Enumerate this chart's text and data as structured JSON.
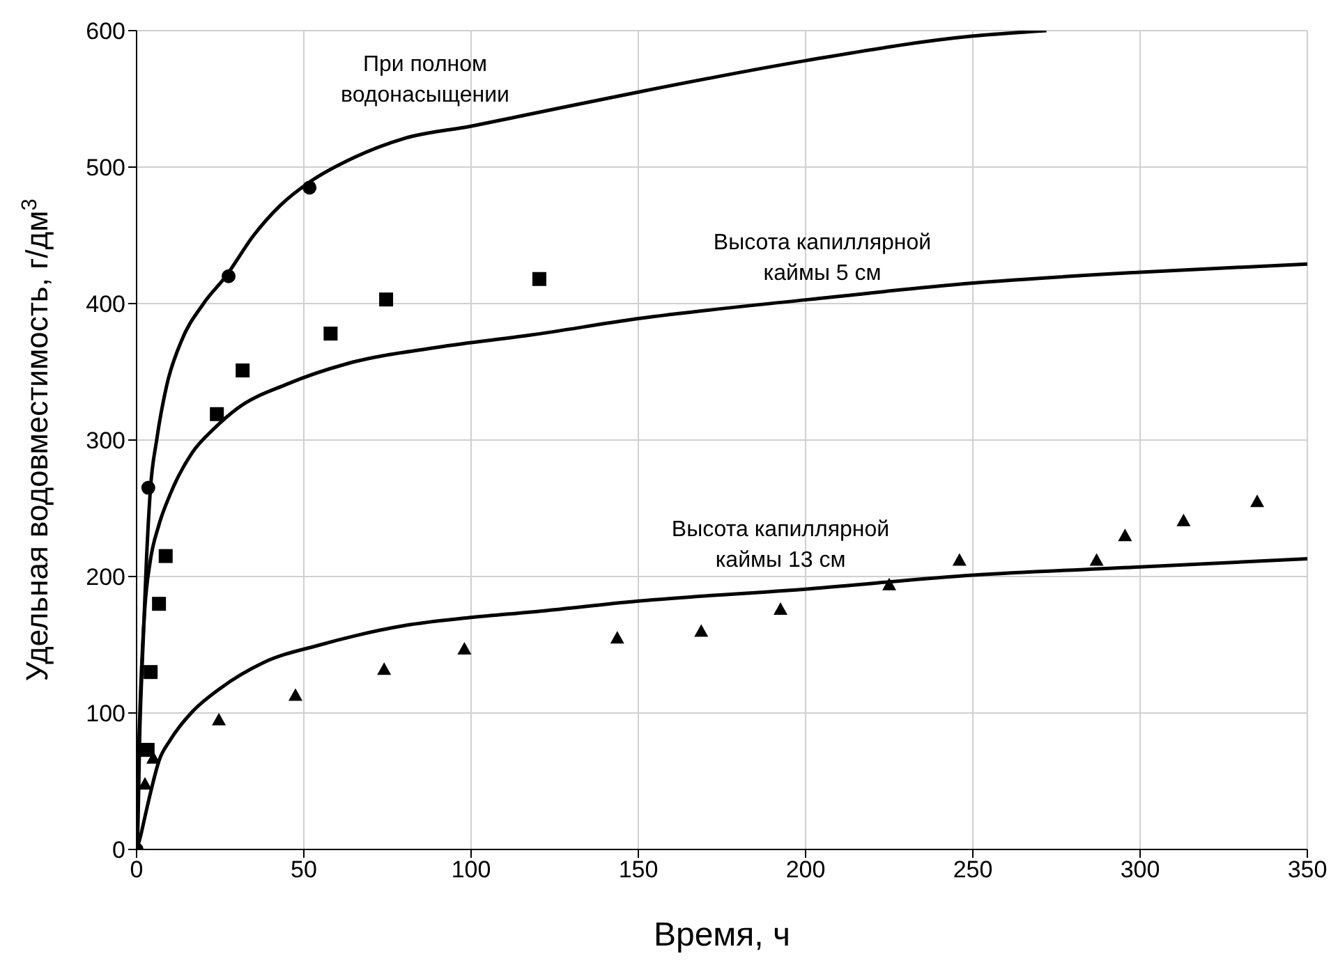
{
  "chart_data": {
    "type": "scatter",
    "xlabel": "Время, ч",
    "ylabel": "Удельная водовместимость, г/дм$^{3}$",
    "xlim": [
      0,
      350
    ],
    "ylim": [
      0,
      600
    ],
    "xticks": [
      0,
      50,
      100,
      150,
      200,
      250,
      300,
      350
    ],
    "yticks": [
      0,
      100,
      200,
      300,
      400,
      500,
      600
    ],
    "grid": true,
    "series": [
      {
        "type": "line",
        "marker": "none",
        "color": "#000000",
        "x": [
          0,
          0.3,
          1,
          1.7,
          3,
          4.2,
          6,
          9,
          13.3,
          20,
          26.7,
          35,
          43,
          51.7,
          65,
          80,
          100,
          118,
          150,
          200,
          250,
          272
        ],
        "values": [
          0,
          10,
          90,
          137,
          215,
          266,
          300,
          340,
          372,
          400,
          420,
          450,
          472,
          489,
          507,
          521,
          530,
          539,
          555,
          578,
          596,
          600
        ]
      },
      {
        "type": "line",
        "marker": "none",
        "color": "#000000",
        "x": [
          0,
          0.5,
          1.2,
          2.5,
          4,
          6.7,
          10,
          16.7,
          23,
          30,
          45,
          63,
          90,
          118,
          150,
          201,
          250,
          300,
          350
        ],
        "values": [
          0,
          60,
          115,
          178,
          210,
          238,
          260,
          291,
          308,
          323,
          341,
          356,
          368,
          377,
          389,
          403,
          415,
          423,
          429
        ]
      },
      {
        "type": "line",
        "marker": "none",
        "color": "#000000",
        "x": [
          0,
          1,
          2.5,
          4.5,
          6.7,
          10,
          16.7,
          25,
          38,
          55,
          80,
          100,
          118,
          150,
          201,
          250,
          300,
          350
        ],
        "values": [
          0,
          8,
          24,
          45,
          65,
          80,
          101,
          118,
          137,
          150,
          164,
          170,
          174,
          182,
          191,
          201,
          207,
          213
        ]
      },
      {
        "marker": "circle",
        "color": "#000000",
        "x": [
          0,
          3.5,
          27.5,
          51.7
        ],
        "values": [
          0,
          265,
          420,
          485
        ]
      },
      {
        "marker": "square",
        "color": "#000000",
        "x": [
          3.3,
          4.2,
          6.7,
          8.7,
          24,
          31.7,
          58,
          74.6,
          120.4
        ],
        "values": [
          73,
          130,
          180,
          215,
          319,
          351,
          378,
          403,
          418
        ]
      },
      {
        "marker": "triangle",
        "color": "#000000",
        "x": [
          2.5,
          5,
          24.6,
          47.5,
          74,
          98,
          143.7,
          168.8,
          192.5,
          225,
          246,
          287,
          295.5,
          313,
          335
        ],
        "values": [
          48,
          67,
          95,
          113,
          132,
          147,
          155,
          160,
          176,
          194,
          212,
          212,
          230,
          241,
          255
        ]
      }
    ],
    "annotations": [
      "При полном\nводонасыщении",
      "Высота капиллярной\nкаймы 5 см",
      "Высота капиллярной\nкаймы 13 см"
    ]
  }
}
